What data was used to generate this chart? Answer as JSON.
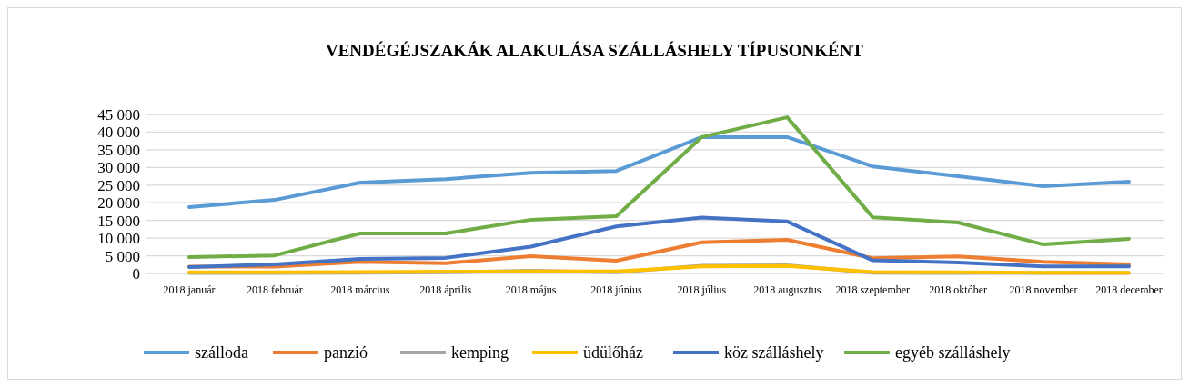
{
  "chart_data": {
    "type": "line",
    "title": "VENDÉGÉJSZAKÁK ALAKULÁSA SZÁLLÁSHELY TÍPUSONKÉNT",
    "categories": [
      "2018 január",
      "2018 február",
      "2018 március",
      "2018 április",
      "2018 május",
      "2018 június",
      "2018 július",
      "2018 augusztus",
      "2018 szeptember",
      "2018 október",
      "2018 november",
      "2018 december"
    ],
    "series": [
      {
        "name": "szálloda",
        "color": "#5b9bd5",
        "values": [
          18800,
          20800,
          25700,
          26700,
          28500,
          29000,
          38600,
          38600,
          30300,
          27500,
          24700,
          26000
        ]
      },
      {
        "name": "panzió",
        "color": "#ed7d31",
        "values": [
          1900,
          1900,
          3300,
          2900,
          4900,
          3600,
          8800,
          9500,
          4300,
          4800,
          3300,
          2600
        ]
      },
      {
        "name": "kemping",
        "color": "#a5a5a5",
        "values": [
          100,
          100,
          200,
          300,
          800,
          300,
          2200,
          2300,
          200,
          100,
          100,
          100
        ]
      },
      {
        "name": "üdülőház",
        "color": "#ffc000",
        "values": [
          300,
          300,
          400,
          500,
          600,
          600,
          2000,
          2100,
          400,
          300,
          200,
          200
        ]
      },
      {
        "name": "köz szálláshely",
        "color": "#4472c4",
        "values": [
          1800,
          2600,
          4100,
          4400,
          7600,
          13300,
          15800,
          14700,
          3700,
          3100,
          2000,
          2000
        ]
      },
      {
        "name": "egyéb szálláshely",
        "color": "#70ad47",
        "values": [
          4600,
          5100,
          11300,
          11300,
          15200,
          16200,
          38600,
          44200,
          15900,
          14400,
          8200,
          9800
        ]
      }
    ],
    "ylim": [
      0,
      45000
    ],
    "yticks": [
      {
        "value": 0,
        "label": "0"
      },
      {
        "value": 5000,
        "label": "5 000"
      },
      {
        "value": 10000,
        "label": "10 000"
      },
      {
        "value": 15000,
        "label": "15 000"
      },
      {
        "value": 20000,
        "label": "20 000"
      },
      {
        "value": 25000,
        "label": "25 000"
      },
      {
        "value": 30000,
        "label": "30 000"
      },
      {
        "value": 35000,
        "label": "35 000"
      },
      {
        "value": 40000,
        "label": "40 000"
      },
      {
        "value": 45000,
        "label": "45 000"
      }
    ],
    "grid": "y",
    "legend": "bottom",
    "marker": "none",
    "line_style": "solid"
  }
}
